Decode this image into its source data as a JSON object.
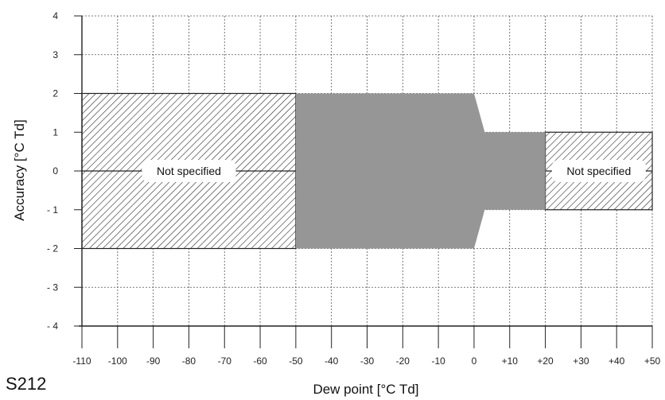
{
  "chart_data": {
    "type": "area",
    "xlabel": "Dew point [°C Td]",
    "ylabel": "Accuracy [°C Td]",
    "xlim": [
      -110,
      50
    ],
    "ylim": [
      -4,
      4
    ],
    "x_ticks": [
      {
        "value": -110,
        "label": "-110"
      },
      {
        "value": -100,
        "label": "-100"
      },
      {
        "value": -90,
        "label": "-90"
      },
      {
        "value": -80,
        "label": "-80"
      },
      {
        "value": -70,
        "label": "-70"
      },
      {
        "value": -60,
        "label": "-60"
      },
      {
        "value": -50,
        "label": "-50"
      },
      {
        "value": -40,
        "label": "-40"
      },
      {
        "value": -30,
        "label": "-30"
      },
      {
        "value": -20,
        "label": "-20"
      },
      {
        "value": -10,
        "label": "-10"
      },
      {
        "value": 0,
        "label": "0"
      },
      {
        "value": 10,
        "label": "+10"
      },
      {
        "value": 20,
        "label": "+20"
      },
      {
        "value": 30,
        "label": "+30"
      },
      {
        "value": 40,
        "label": "+40"
      },
      {
        "value": 50,
        "label": "+50"
      }
    ],
    "y_ticks": [
      {
        "value": 4,
        "label": "4"
      },
      {
        "value": 3,
        "label": "3"
      },
      {
        "value": 2,
        "label": "2"
      },
      {
        "value": 1,
        "label": "1"
      },
      {
        "value": 0,
        "label": "0"
      },
      {
        "value": -1,
        "label": "- 1"
      },
      {
        "value": -2,
        "label": "- 2"
      },
      {
        "value": -3,
        "label": "- 3"
      },
      {
        "value": -4,
        "label": "- 4"
      }
    ],
    "grid": true,
    "specified_band": {
      "upper": [
        [
          -50,
          2
        ],
        [
          0,
          2
        ],
        [
          3,
          1
        ],
        [
          20,
          1
        ]
      ],
      "lower": [
        [
          -50,
          -2
        ],
        [
          0,
          -2
        ],
        [
          3,
          -1
        ],
        [
          20,
          -1
        ]
      ]
    },
    "unspecified_regions": [
      {
        "x": [
          -110,
          -50
        ],
        "y": [
          -2,
          2
        ],
        "label": "Not specified"
      },
      {
        "x": [
          20,
          50
        ],
        "y": [
          -1,
          1
        ],
        "label": "Not specified"
      }
    ]
  },
  "figure_code": "S212",
  "colors": {
    "band_fill": "#969696",
    "hatch": "#2a2a2a",
    "grid": "#555555",
    "axis": "#222222"
  }
}
